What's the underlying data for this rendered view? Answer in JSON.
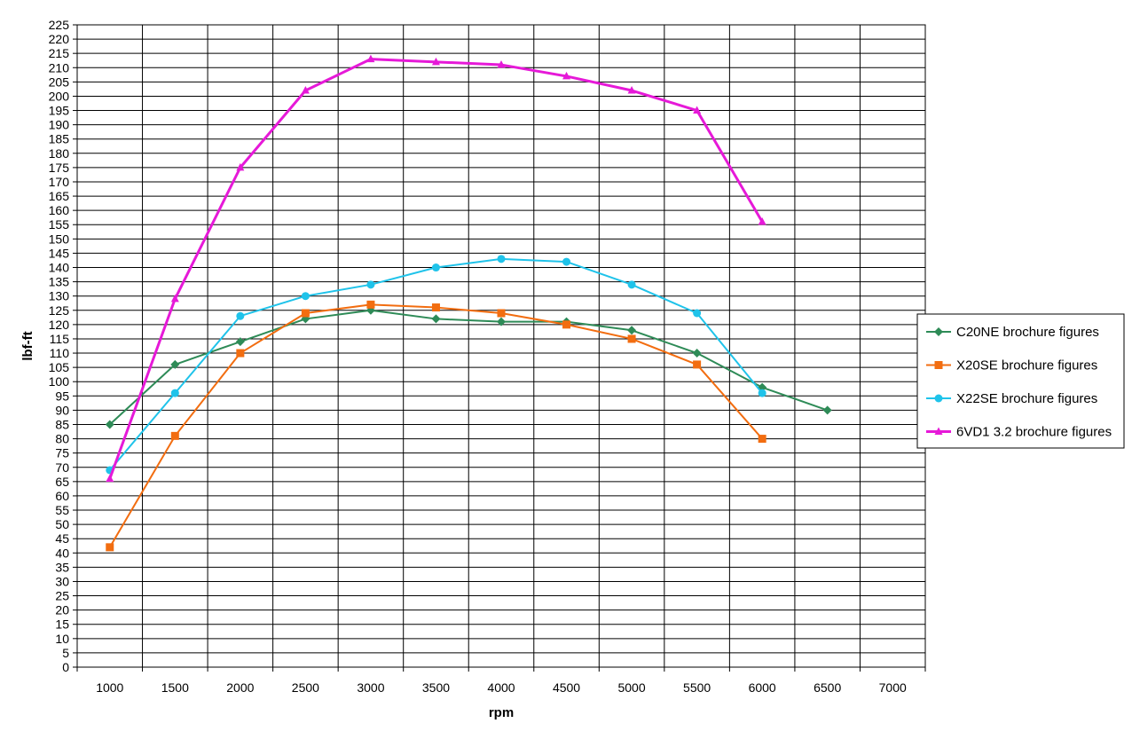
{
  "chart_data": {
    "type": "line",
    "title": "",
    "xlabel": "rpm",
    "ylabel": "lbf-ft",
    "xlim": [
      750,
      7250
    ],
    "ylim": [
      0,
      225
    ],
    "x_ticks": [
      1000,
      1500,
      2000,
      2500,
      3000,
      3500,
      4000,
      4500,
      5000,
      5500,
      6000,
      6500,
      7000
    ],
    "y_tick_step": 5,
    "grid": true,
    "legend_position": "right",
    "series": [
      {
        "name": "C20NE brochure figures",
        "color": "#2e8b57",
        "marker": "diamond",
        "x": [
          1000,
          1500,
          2000,
          2500,
          3000,
          3500,
          4000,
          4500,
          5000,
          5500,
          6000,
          6500
        ],
        "values": [
          85,
          106,
          114,
          122,
          125,
          122,
          121,
          121,
          118,
          110,
          98,
          90
        ]
      },
      {
        "name": "X20SE brochure figures",
        "color": "#f26d10",
        "marker": "square",
        "x": [
          1000,
          1500,
          2000,
          2500,
          3000,
          3500,
          4000,
          4500,
          5000,
          5500,
          6000
        ],
        "values": [
          42,
          81,
          110,
          124,
          127,
          126,
          124,
          120,
          115,
          106,
          80
        ]
      },
      {
        "name": "X22SE brochure figures",
        "color": "#1fc3ea",
        "marker": "circle",
        "x": [
          1000,
          1500,
          2000,
          2500,
          3000,
          3500,
          4000,
          4500,
          5000,
          5500,
          6000
        ],
        "values": [
          69,
          96,
          123,
          130,
          134,
          140,
          143,
          142,
          134,
          124,
          96
        ]
      },
      {
        "name": "6VD1 3.2 brochure figures",
        "color": "#e619d8",
        "marker": "triangle",
        "x": [
          1000,
          1500,
          2000,
          2500,
          3000,
          3500,
          4000,
          4500,
          5000,
          5500,
          6000
        ],
        "values": [
          66,
          129,
          175,
          202,
          213,
          212,
          211,
          207,
          202,
          195,
          156
        ]
      }
    ]
  }
}
